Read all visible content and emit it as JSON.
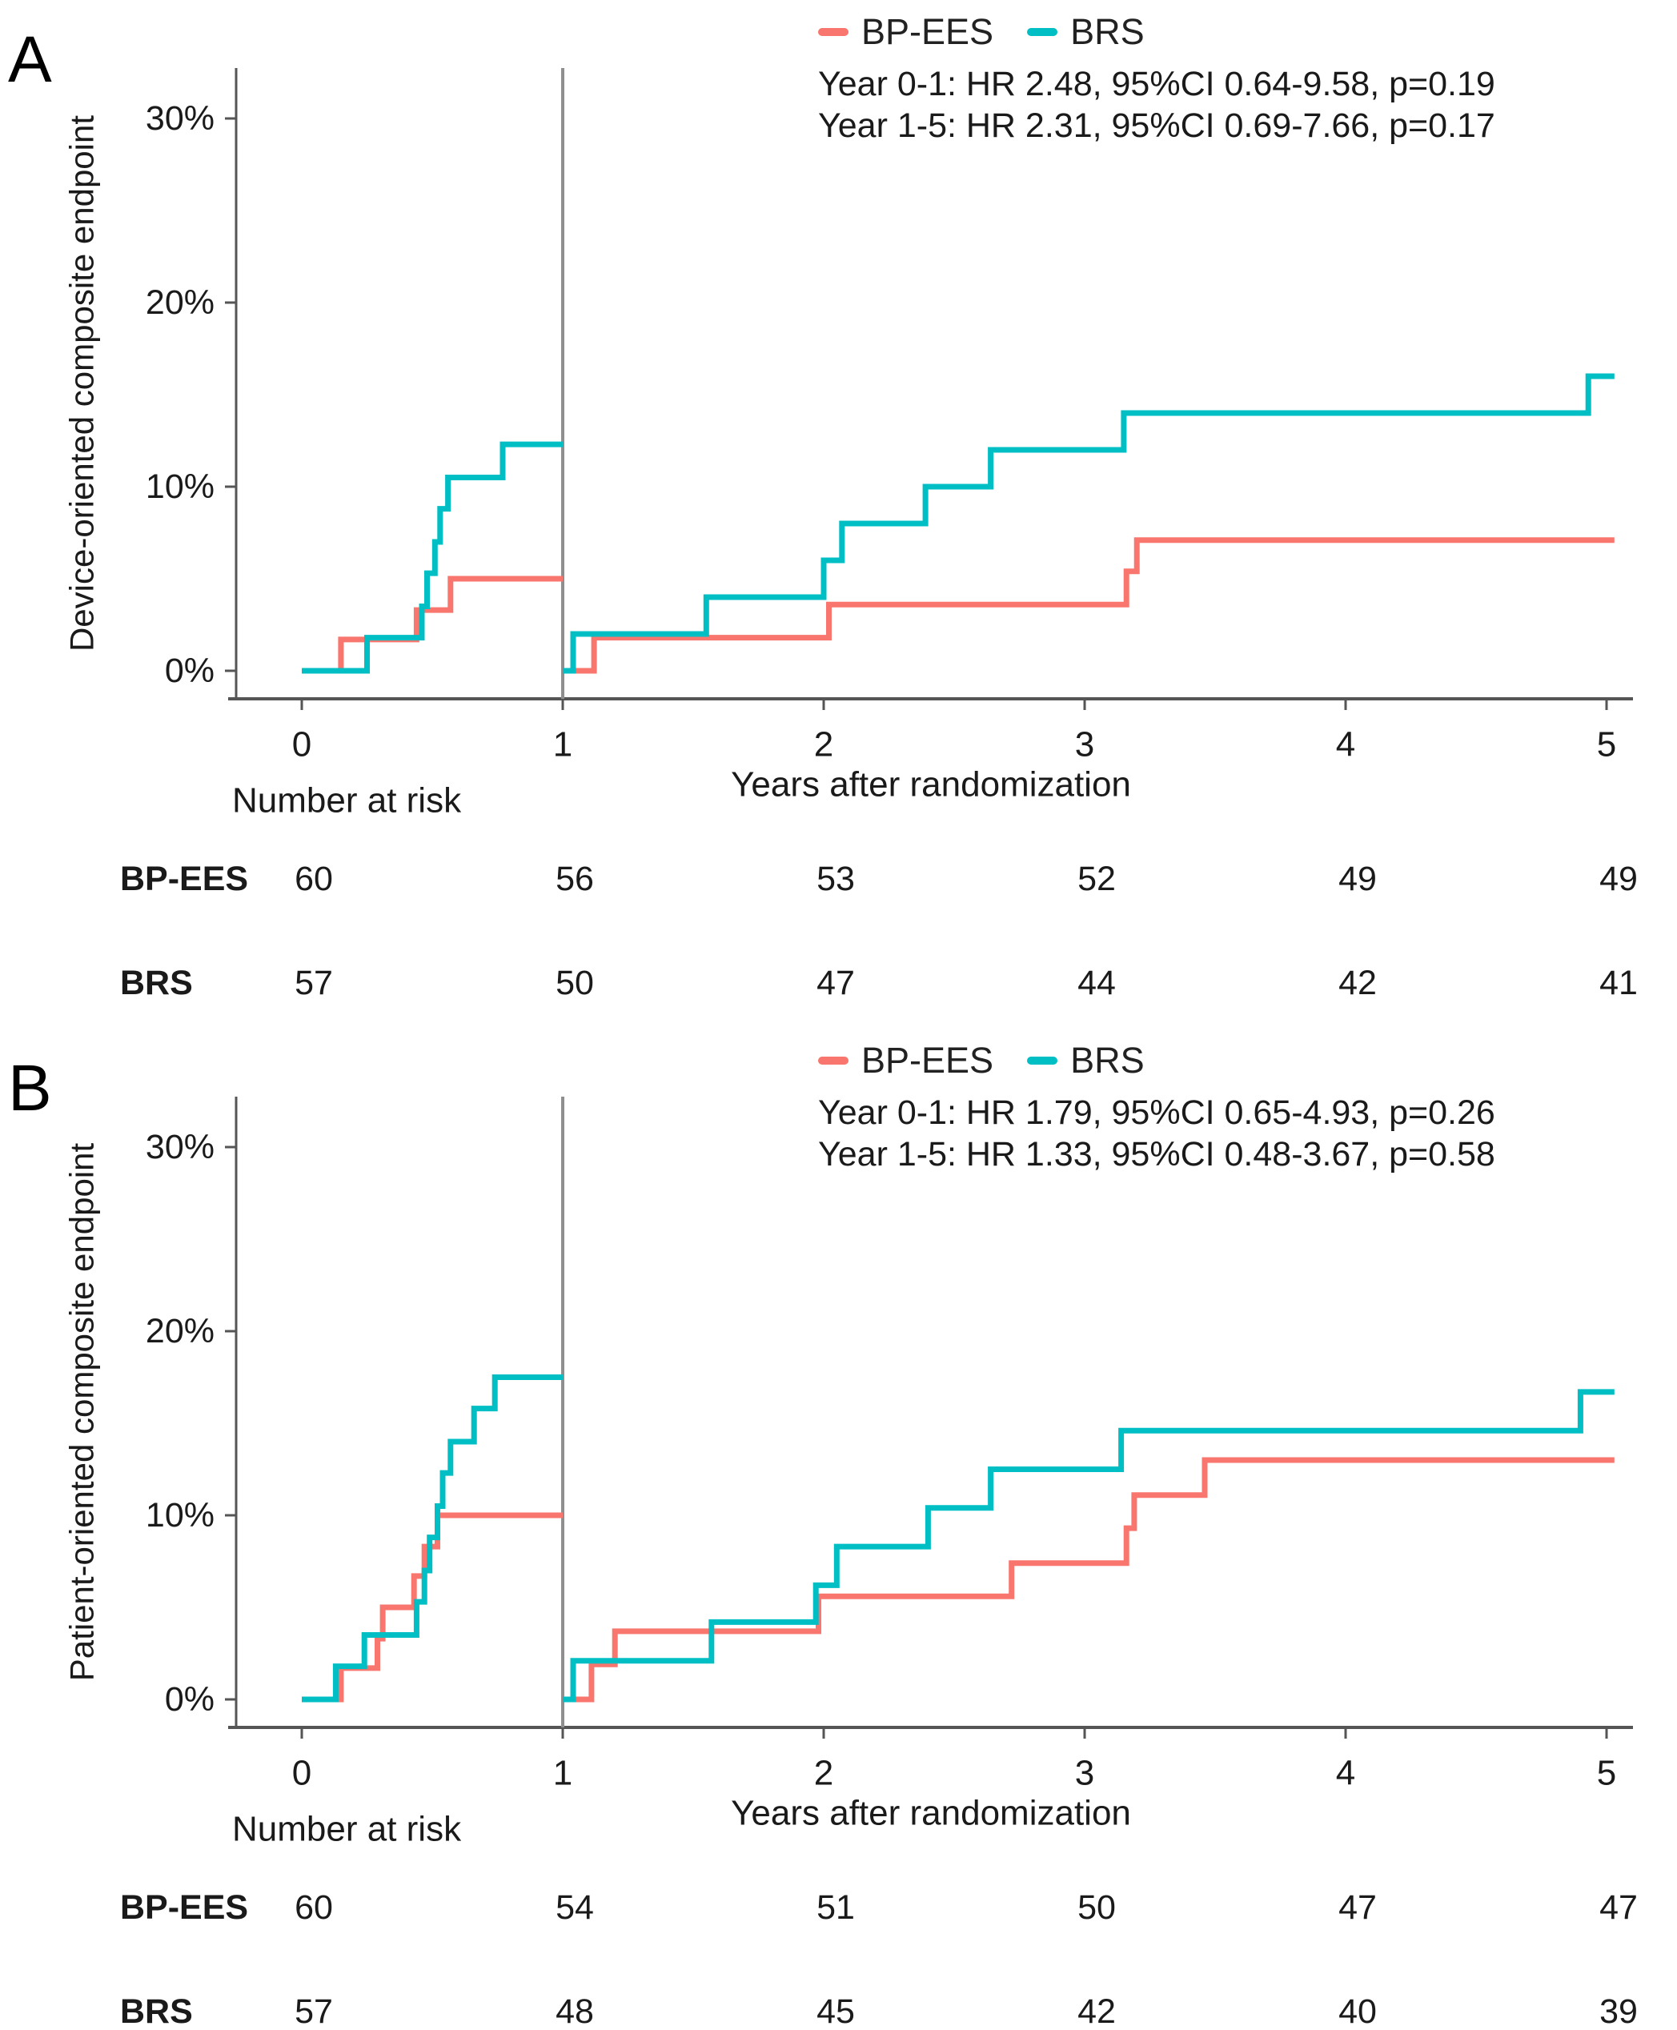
{
  "figure_colors": {
    "bp_ees": "#F8766D",
    "brs": "#00BFC4",
    "axis": "#555555",
    "landmark_line": "#8f8f8f",
    "text": "#1a1a1a"
  },
  "chart_data": [
    {
      "type": "line",
      "panel_label": "A",
      "ylabel": "Device-oriented composite endpoint",
      "xlabel": "Years after randomization",
      "x_ticks": [
        0,
        1,
        2,
        3,
        4,
        5
      ],
      "y_ticks_pct": [
        0,
        10,
        20,
        30
      ],
      "ylim_pct": [
        0,
        32
      ],
      "xlim_years": [
        0,
        5
      ],
      "landmark_line_x": 1,
      "grid": "off",
      "legend_position": "top",
      "legend": [
        {
          "name": "BP-EES",
          "color": "#F8766D"
        },
        {
          "name": "BRS",
          "color": "#00BFC4"
        }
      ],
      "annotations": [
        "Year 0-1: HR 2.48, 95%CI 0.64-9.58, p=0.19",
        "Year 1-5: HR 2.31, 95%CI 0.69-7.66, p=0.17"
      ],
      "series": [
        {
          "name": "BP-EES",
          "color": "#F8766D",
          "segments": [
            [
              [
                0,
                0
              ],
              [
                0.15,
                0
              ],
              [
                0.15,
                1.7
              ],
              [
                0.44,
                1.7
              ],
              [
                0.44,
                3.3
              ],
              [
                0.57,
                3.3
              ],
              [
                0.57,
                5.0
              ],
              [
                1,
                5.0
              ]
            ],
            [
              [
                1,
                0
              ],
              [
                1.12,
                0
              ],
              [
                1.12,
                1.8
              ],
              [
                2.02,
                1.8
              ],
              [
                2.02,
                3.6
              ],
              [
                3.16,
                3.6
              ],
              [
                3.16,
                5.4
              ],
              [
                3.2,
                5.4
              ],
              [
                3.2,
                7.1
              ],
              [
                5.03,
                7.1
              ]
            ]
          ]
        },
        {
          "name": "BRS",
          "color": "#00BFC4",
          "segments": [
            [
              [
                0,
                0
              ],
              [
                0.25,
                0
              ],
              [
                0.25,
                1.8
              ],
              [
                0.46,
                1.8
              ],
              [
                0.46,
                3.5
              ],
              [
                0.48,
                3.5
              ],
              [
                0.48,
                5.3
              ],
              [
                0.51,
                5.3
              ],
              [
                0.51,
                7.0
              ],
              [
                0.53,
                7.0
              ],
              [
                0.53,
                8.8
              ],
              [
                0.56,
                8.8
              ],
              [
                0.56,
                10.5
              ],
              [
                0.77,
                10.5
              ],
              [
                0.77,
                12.3
              ],
              [
                1,
                12.3
              ]
            ],
            [
              [
                1,
                0
              ],
              [
                1.04,
                0
              ],
              [
                1.04,
                2.0
              ],
              [
                1.55,
                2.0
              ],
              [
                1.55,
                4.0
              ],
              [
                2.0,
                4.0
              ],
              [
                2.0,
                6.0
              ],
              [
                2.07,
                6.0
              ],
              [
                2.07,
                8.0
              ],
              [
                2.39,
                8.0
              ],
              [
                2.39,
                10.0
              ],
              [
                2.64,
                10.0
              ],
              [
                2.64,
                12.0
              ],
              [
                3.15,
                12.0
              ],
              [
                3.15,
                14.0
              ],
              [
                4.93,
                14.0
              ],
              [
                4.93,
                16.0
              ],
              [
                5.03,
                16.0
              ]
            ]
          ]
        }
      ],
      "number_at_risk": {
        "label": "Number at risk",
        "rows": [
          {
            "name": "BP-EES",
            "color": "#F8766D",
            "values": [
              60,
              56,
              53,
              52,
              49,
              49
            ]
          },
          {
            "name": "BRS",
            "color": "#00BFC4",
            "values": [
              57,
              50,
              47,
              44,
              42,
              41
            ]
          }
        ]
      }
    },
    {
      "type": "line",
      "panel_label": "B",
      "ylabel": "Patient-oriented composite endpoint",
      "xlabel": "Years after randomization",
      "x_ticks": [
        0,
        1,
        2,
        3,
        4,
        5
      ],
      "y_ticks_pct": [
        0,
        10,
        20,
        30
      ],
      "ylim_pct": [
        0,
        32
      ],
      "xlim_years": [
        0,
        5
      ],
      "landmark_line_x": 1,
      "grid": "off",
      "legend_position": "top",
      "legend": [
        {
          "name": "BP-EES",
          "color": "#F8766D"
        },
        {
          "name": "BRS",
          "color": "#00BFC4"
        }
      ],
      "annotations": [
        "Year 0-1: HR 1.79, 95%CI 0.65-4.93, p=0.26",
        "Year 1-5: HR 1.33, 95%CI 0.48-3.67, p=0.58"
      ],
      "series": [
        {
          "name": "BP-EES",
          "color": "#F8766D",
          "segments": [
            [
              [
                0,
                0
              ],
              [
                0.15,
                0
              ],
              [
                0.15,
                1.7
              ],
              [
                0.29,
                1.7
              ],
              [
                0.29,
                3.3
              ],
              [
                0.31,
                3.3
              ],
              [
                0.31,
                5.0
              ],
              [
                0.43,
                5.0
              ],
              [
                0.43,
                6.7
              ],
              [
                0.47,
                6.7
              ],
              [
                0.47,
                8.3
              ],
              [
                0.52,
                8.3
              ],
              [
                0.52,
                10.0
              ],
              [
                1,
                10.0
              ]
            ],
            [
              [
                1,
                0
              ],
              [
                1.11,
                0
              ],
              [
                1.11,
                1.9
              ],
              [
                1.2,
                1.9
              ],
              [
                1.2,
                3.7
              ],
              [
                1.98,
                3.7
              ],
              [
                1.98,
                5.6
              ],
              [
                2.72,
                5.6
              ],
              [
                2.72,
                7.4
              ],
              [
                3.16,
                7.4
              ],
              [
                3.16,
                9.3
              ],
              [
                3.19,
                9.3
              ],
              [
                3.19,
                11.1
              ],
              [
                3.46,
                11.1
              ],
              [
                3.46,
                13.0
              ],
              [
                5.03,
                13.0
              ]
            ]
          ]
        },
        {
          "name": "BRS",
          "color": "#00BFC4",
          "segments": [
            [
              [
                0,
                0
              ],
              [
                0.13,
                0
              ],
              [
                0.13,
                1.8
              ],
              [
                0.24,
                1.8
              ],
              [
                0.24,
                3.5
              ],
              [
                0.44,
                3.5
              ],
              [
                0.44,
                5.3
              ],
              [
                0.47,
                5.3
              ],
              [
                0.47,
                7.0
              ],
              [
                0.49,
                7.0
              ],
              [
                0.49,
                8.8
              ],
              [
                0.52,
                8.8
              ],
              [
                0.52,
                10.5
              ],
              [
                0.54,
                10.5
              ],
              [
                0.54,
                12.3
              ],
              [
                0.57,
                12.3
              ],
              [
                0.57,
                14.0
              ],
              [
                0.66,
                14.0
              ],
              [
                0.66,
                15.8
              ],
              [
                0.74,
                15.8
              ],
              [
                0.74,
                17.5
              ],
              [
                1,
                17.5
              ]
            ],
            [
              [
                1,
                0
              ],
              [
                1.04,
                0
              ],
              [
                1.04,
                2.1
              ],
              [
                1.57,
                2.1
              ],
              [
                1.57,
                4.2
              ],
              [
                1.97,
                4.2
              ],
              [
                1.97,
                6.2
              ],
              [
                2.05,
                6.2
              ],
              [
                2.05,
                8.3
              ],
              [
                2.4,
                8.3
              ],
              [
                2.4,
                10.4
              ],
              [
                2.64,
                10.4
              ],
              [
                2.64,
                12.5
              ],
              [
                3.14,
                12.5
              ],
              [
                3.14,
                14.6
              ],
              [
                4.9,
                14.6
              ],
              [
                4.9,
                16.7
              ],
              [
                5.03,
                16.7
              ]
            ]
          ]
        }
      ],
      "number_at_risk": {
        "label": "Number at risk",
        "rows": [
          {
            "name": "BP-EES",
            "color": "#F8766D",
            "values": [
              60,
              54,
              51,
              50,
              47,
              47
            ]
          },
          {
            "name": "BRS",
            "color": "#00BFC4",
            "values": [
              57,
              48,
              45,
              42,
              40,
              39
            ]
          }
        ]
      }
    }
  ]
}
